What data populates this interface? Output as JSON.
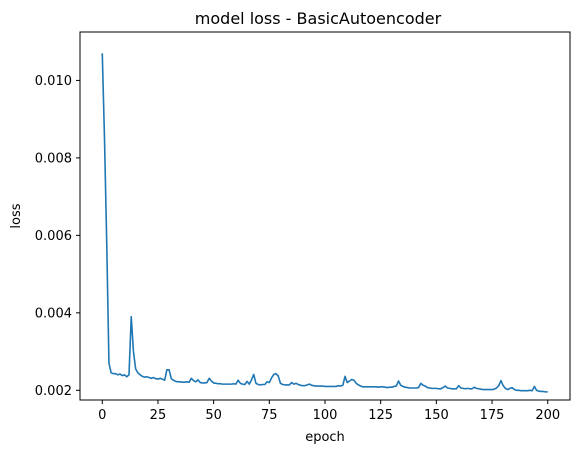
{
  "chart_data": {
    "type": "line",
    "title": "model loss - BasicAutoencoder",
    "xlabel": "epoch",
    "ylabel": "loss",
    "xlim": [
      -10,
      210
    ],
    "ylim": [
      0.00175,
      0.01125
    ],
    "xticks": [
      0,
      25,
      50,
      75,
      100,
      125,
      150,
      175,
      200
    ],
    "xtick_labels": [
      "0",
      "25",
      "50",
      "75",
      "100",
      "125",
      "150",
      "175",
      "200"
    ],
    "yticks": [
      0.002,
      0.004,
      0.006,
      0.008,
      0.01
    ],
    "ytick_labels": [
      "0.002",
      "0.004",
      "0.006",
      "0.008",
      "0.010"
    ],
    "grid": false,
    "series": [
      {
        "name": "loss",
        "color": "#1f77b4",
        "points": [
          [
            0,
            0.0107
          ],
          [
            1,
            0.0085
          ],
          [
            2,
            0.0058
          ],
          [
            3,
            0.0027
          ],
          [
            4,
            0.00245
          ],
          [
            5,
            0.00243
          ],
          [
            6,
            0.00243
          ],
          [
            7,
            0.0024
          ],
          [
            8,
            0.00242
          ],
          [
            9,
            0.00238
          ],
          [
            10,
            0.0024
          ],
          [
            11,
            0.00235
          ],
          [
            12,
            0.0024
          ],
          [
            13,
            0.0039
          ],
          [
            14,
            0.003
          ],
          [
            15,
            0.00255
          ],
          [
            16,
            0.00245
          ],
          [
            17,
            0.0024
          ],
          [
            18,
            0.00236
          ],
          [
            19,
            0.00234
          ],
          [
            20,
            0.00235
          ],
          [
            21,
            0.00233
          ],
          [
            22,
            0.00231
          ],
          [
            23,
            0.00233
          ],
          [
            24,
            0.0023
          ],
          [
            25,
            0.00229
          ],
          [
            26,
            0.00231
          ],
          [
            27,
            0.00229
          ],
          [
            28,
            0.00226
          ],
          [
            29,
            0.00253
          ],
          [
            30,
            0.00253
          ],
          [
            31,
            0.0023
          ],
          [
            32,
            0.00226
          ],
          [
            33,
            0.00223
          ],
          [
            34,
            0.00222
          ],
          [
            35,
            0.00222
          ],
          [
            36,
            0.00221
          ],
          [
            37,
            0.00221
          ],
          [
            38,
            0.00222
          ],
          [
            39,
            0.00221
          ],
          [
            40,
            0.00231
          ],
          [
            41,
            0.00225
          ],
          [
            42,
            0.00222
          ],
          [
            43,
            0.00227
          ],
          [
            44,
            0.0022
          ],
          [
            45,
            0.00219
          ],
          [
            46,
            0.00219
          ],
          [
            47,
            0.0022
          ],
          [
            48,
            0.00231
          ],
          [
            49,
            0.00224
          ],
          [
            50,
            0.00219
          ],
          [
            51,
            0.00218
          ],
          [
            52,
            0.00217
          ],
          [
            53,
            0.00217
          ],
          [
            54,
            0.00216
          ],
          [
            55,
            0.00216
          ],
          [
            56,
            0.00216
          ],
          [
            57,
            0.00216
          ],
          [
            58,
            0.00216
          ],
          [
            59,
            0.00217
          ],
          [
            60,
            0.00216
          ],
          [
            61,
            0.00226
          ],
          [
            62,
            0.00218
          ],
          [
            63,
            0.00216
          ],
          [
            64,
            0.00215
          ],
          [
            65,
            0.00223
          ],
          [
            66,
            0.00216
          ],
          [
            67,
            0.00227
          ],
          [
            68,
            0.00241
          ],
          [
            69,
            0.00218
          ],
          [
            70,
            0.00215
          ],
          [
            71,
            0.00214
          ],
          [
            72,
            0.00215
          ],
          [
            73,
            0.00215
          ],
          [
            74,
            0.00222
          ],
          [
            75,
            0.0022
          ],
          [
            76,
            0.00232
          ],
          [
            77,
            0.00241
          ],
          [
            78,
            0.00243
          ],
          [
            79,
            0.00237
          ],
          [
            80,
            0.00218
          ],
          [
            81,
            0.00215
          ],
          [
            82,
            0.00214
          ],
          [
            83,
            0.00214
          ],
          [
            84,
            0.00214
          ],
          [
            85,
            0.0022
          ],
          [
            86,
            0.00216
          ],
          [
            87,
            0.00218
          ],
          [
            88,
            0.00215
          ],
          [
            89,
            0.00213
          ],
          [
            90,
            0.00212
          ],
          [
            91,
            0.00212
          ],
          [
            92,
            0.00214
          ],
          [
            93,
            0.00216
          ],
          [
            94,
            0.00213
          ],
          [
            95,
            0.00212
          ],
          [
            96,
            0.00211
          ],
          [
            97,
            0.00211
          ],
          [
            98,
            0.00211
          ],
          [
            99,
            0.00211
          ],
          [
            100,
            0.0021
          ],
          [
            101,
            0.0021
          ],
          [
            102,
            0.0021
          ],
          [
            103,
            0.0021
          ],
          [
            104,
            0.0021
          ],
          [
            105,
            0.0021
          ],
          [
            106,
            0.00212
          ],
          [
            107,
            0.00211
          ],
          [
            108,
            0.00213
          ],
          [
            109,
            0.00236
          ],
          [
            110,
            0.0022
          ],
          [
            111,
            0.00224
          ],
          [
            112,
            0.00228
          ],
          [
            113,
            0.00226
          ],
          [
            114,
            0.00218
          ],
          [
            115,
            0.00214
          ],
          [
            116,
            0.00211
          ],
          [
            117,
            0.00209
          ],
          [
            118,
            0.00209
          ],
          [
            119,
            0.00209
          ],
          [
            120,
            0.00209
          ],
          [
            121,
            0.00209
          ],
          [
            122,
            0.00209
          ],
          [
            123,
            0.00209
          ],
          [
            124,
            0.00208
          ],
          [
            125,
            0.00209
          ],
          [
            126,
            0.00209
          ],
          [
            127,
            0.00208
          ],
          [
            128,
            0.00207
          ],
          [
            129,
            0.00208
          ],
          [
            130,
            0.00208
          ],
          [
            131,
            0.0021
          ],
          [
            132,
            0.00211
          ],
          [
            133,
            0.00224
          ],
          [
            134,
            0.00213
          ],
          [
            135,
            0.0021
          ],
          [
            136,
            0.00208
          ],
          [
            137,
            0.00207
          ],
          [
            138,
            0.00206
          ],
          [
            139,
            0.00206
          ],
          [
            140,
            0.00206
          ],
          [
            141,
            0.00206
          ],
          [
            142,
            0.00207
          ],
          [
            143,
            0.00218
          ],
          [
            144,
            0.00213
          ],
          [
            145,
            0.00211
          ],
          [
            146,
            0.00207
          ],
          [
            147,
            0.00206
          ],
          [
            148,
            0.00205
          ],
          [
            149,
            0.00205
          ],
          [
            150,
            0.00205
          ],
          [
            151,
            0.00204
          ],
          [
            152,
            0.00204
          ],
          [
            153,
            0.00207
          ],
          [
            154,
            0.00211
          ],
          [
            155,
            0.00206
          ],
          [
            156,
            0.00205
          ],
          [
            157,
            0.00204
          ],
          [
            158,
            0.00204
          ],
          [
            159,
            0.00204
          ],
          [
            160,
            0.00212
          ],
          [
            161,
            0.00206
          ],
          [
            162,
            0.00205
          ],
          [
            163,
            0.00204
          ],
          [
            164,
            0.00205
          ],
          [
            165,
            0.00204
          ],
          [
            166,
            0.00204
          ],
          [
            167,
            0.00208
          ],
          [
            168,
            0.00205
          ],
          [
            169,
            0.00204
          ],
          [
            170,
            0.00203
          ],
          [
            171,
            0.00202
          ],
          [
            172,
            0.00202
          ],
          [
            173,
            0.00202
          ],
          [
            174,
            0.00202
          ],
          [
            175,
            0.00202
          ],
          [
            176,
            0.00203
          ],
          [
            177,
            0.00206
          ],
          [
            178,
            0.00212
          ],
          [
            179,
            0.00225
          ],
          [
            180,
            0.00212
          ],
          [
            181,
            0.00205
          ],
          [
            182,
            0.00202
          ],
          [
            183,
            0.00205
          ],
          [
            184,
            0.00207
          ],
          [
            185,
            0.00202
          ],
          [
            186,
            0.002
          ],
          [
            187,
            0.002
          ],
          [
            188,
            0.00199
          ],
          [
            189,
            0.00199
          ],
          [
            190,
            0.00199
          ],
          [
            191,
            0.00199
          ],
          [
            192,
            0.002
          ],
          [
            193,
            0.00199
          ],
          [
            194,
            0.0021
          ],
          [
            195,
            0.002
          ],
          [
            196,
            0.00198
          ],
          [
            197,
            0.00197
          ],
          [
            198,
            0.00197
          ],
          [
            199,
            0.00196
          ],
          [
            200,
            0.00196
          ]
        ]
      }
    ]
  }
}
